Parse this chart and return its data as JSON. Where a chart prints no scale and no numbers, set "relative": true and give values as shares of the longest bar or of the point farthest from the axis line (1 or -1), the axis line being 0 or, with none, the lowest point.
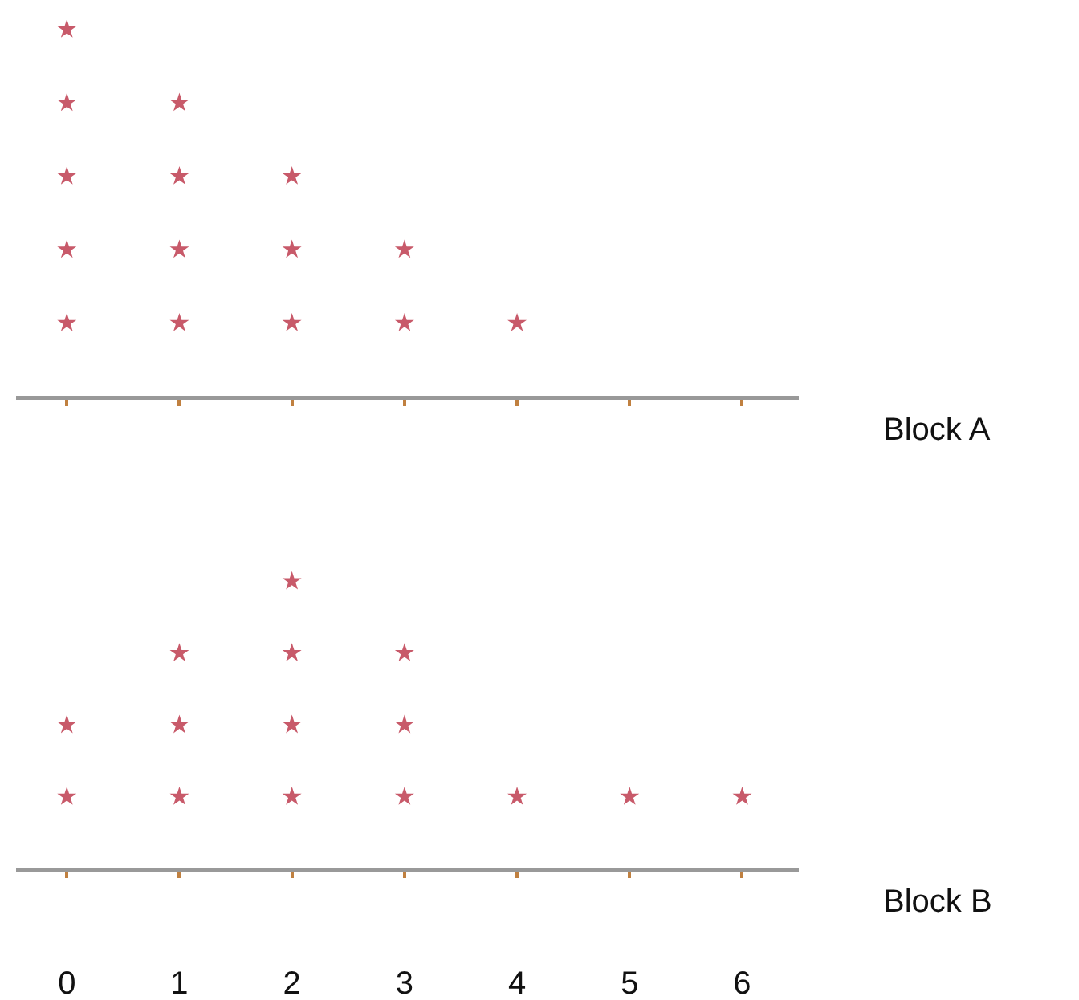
{
  "chart_data": [
    {
      "type": "scatter",
      "relative": true,
      "marker": "star",
      "annotations": [
        "Block A"
      ],
      "xlim": [
        -0.45,
        6.5
      ],
      "xticks": [
        0,
        1,
        2,
        3,
        4,
        5,
        6
      ],
      "tick_labels": false,
      "series": [
        {
          "color": "#c85a6a",
          "x": [
            0,
            0,
            0,
            0,
            0,
            1,
            1,
            1,
            1,
            2,
            2,
            2,
            3,
            3,
            4
          ],
          "values": [
            0.2,
            0.4,
            0.6,
            0.8,
            1,
            0.2,
            0.4,
            0.6,
            0.8,
            0.2,
            0.4,
            0.6,
            0.2,
            0.4,
            0.2
          ]
        }
      ]
    },
    {
      "type": "scatter",
      "relative": true,
      "marker": "star",
      "annotations": [
        "Block B"
      ],
      "xlim": [
        -0.45,
        6.5
      ],
      "xticks": [
        0,
        1,
        2,
        3,
        4,
        5,
        6
      ],
      "tick_labels": "x",
      "series": [
        {
          "color": "#c85a6a",
          "x": [
            0,
            0,
            1,
            1,
            1,
            2,
            2,
            2,
            2,
            3,
            3,
            3,
            4,
            5,
            6
          ],
          "values": [
            0.25,
            0.5,
            0.25,
            0.5,
            0.75,
            0.25,
            0.5,
            0.75,
            1,
            0.25,
            0.5,
            0.75,
            0.25,
            0.25,
            0.25
          ]
        }
      ]
    }
  ]
}
